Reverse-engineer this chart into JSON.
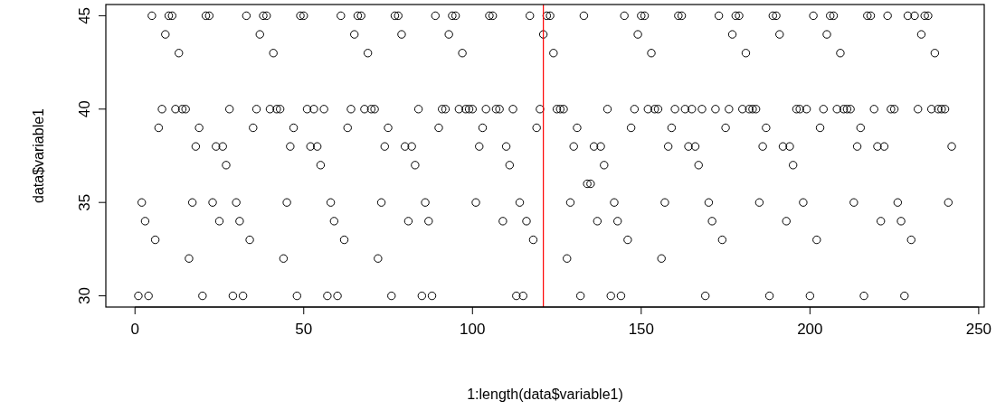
{
  "chart_data": {
    "type": "scatter",
    "xlabel": "1:length(data$variable1)",
    "ylabel": "data$variable1",
    "marker": "circle",
    "grid": false,
    "xlim": [
      -8.64,
      251.64
    ],
    "xticks": [
      0,
      50,
      100,
      150,
      200,
      250
    ],
    "ylim": [
      29.4,
      45.6
    ],
    "yticks": [
      30,
      35,
      40,
      45
    ],
    "ref_lines": [
      {
        "axis": "x",
        "value": 121,
        "color": "#ff0000"
      }
    ],
    "series": [
      {
        "color": "#000000",
        "x": [
          1,
          2,
          3,
          4,
          5,
          6,
          7,
          8,
          9,
          10,
          11,
          12,
          13,
          14,
          15,
          16,
          17,
          18,
          19,
          20,
          21,
          22,
          23,
          24,
          25,
          26,
          27,
          28,
          29,
          30,
          31,
          32,
          33,
          34,
          35,
          36,
          37,
          38,
          39,
          40,
          41,
          42,
          43,
          44,
          45,
          46,
          47,
          48,
          49,
          50,
          51,
          52,
          53,
          54,
          55,
          56,
          57,
          58,
          59,
          60,
          61,
          62,
          63,
          64,
          65,
          66,
          67,
          68,
          69,
          70,
          71,
          72,
          73,
          74,
          75,
          76,
          77,
          78,
          79,
          80,
          81,
          82,
          83,
          84,
          85,
          86,
          87,
          88,
          89,
          90,
          91,
          92,
          93,
          94,
          95,
          96,
          97,
          98,
          99,
          100,
          101,
          102,
          103,
          104,
          105,
          106,
          107,
          108,
          109,
          110,
          111,
          112,
          113,
          114,
          115,
          116,
          117,
          118,
          119,
          120,
          121,
          122,
          123,
          124,
          125,
          126,
          127,
          128,
          129,
          130,
          131,
          132,
          133,
          134,
          135,
          136,
          137,
          138,
          139,
          140,
          141,
          142,
          143,
          144,
          145,
          146,
          147,
          148,
          149,
          150,
          151,
          152,
          153,
          154,
          155,
          156,
          157,
          158,
          159,
          160,
          161,
          162,
          163,
          164,
          165,
          166,
          167,
          168,
          169,
          170,
          171,
          172,
          173,
          174,
          175,
          176,
          177,
          178,
          179,
          180,
          181,
          182,
          183,
          184,
          185,
          186,
          187,
          188,
          189,
          190,
          191,
          192,
          193,
          194,
          195,
          196,
          197,
          198,
          199,
          200,
          201,
          202,
          203,
          204,
          205,
          206,
          207,
          208,
          209,
          210,
          211,
          212,
          213,
          214,
          215,
          216,
          217,
          218,
          219,
          220,
          221,
          222,
          223,
          224,
          225,
          226,
          227,
          228,
          229,
          230,
          231,
          232,
          233,
          234,
          235,
          236,
          237,
          238,
          239,
          240,
          241,
          242
        ],
        "values": [
          30,
          35,
          34,
          30,
          45,
          33,
          39,
          40,
          44,
          45,
          45,
          40,
          43,
          40,
          40,
          32,
          35,
          38,
          39,
          30,
          45,
          45,
          35,
          38,
          34,
          38,
          37,
          40,
          30,
          35,
          34,
          30,
          45,
          33,
          39,
          40,
          44,
          45,
          45,
          40,
          43,
          40,
          40,
          32,
          35,
          38,
          39,
          30,
          45,
          45,
          40,
          38,
          40,
          38,
          37,
          40,
          30,
          35,
          34,
          30,
          45,
          33,
          39,
          40,
          44,
          45,
          45,
          40,
          43,
          40,
          40,
          32,
          35,
          38,
          39,
          30,
          45,
          45,
          44,
          38,
          34,
          38,
          37,
          40,
          30,
          35,
          34,
          30,
          45,
          39,
          40,
          40,
          44,
          45,
          45,
          40,
          43,
          40,
          40,
          40,
          35,
          38,
          39,
          40,
          45,
          45,
          40,
          40,
          34,
          38,
          37,
          40,
          30,
          35,
          30,
          34,
          45,
          33,
          39,
          40,
          44,
          45,
          45,
          43,
          40,
          40,
          40,
          32,
          35,
          38,
          39,
          30,
          45,
          36,
          36,
          38,
          34,
          38,
          37,
          40,
          30,
          35,
          34,
          30,
          45,
          33,
          39,
          40,
          44,
          45,
          45,
          40,
          43,
          40,
          40,
          32,
          35,
          38,
          39,
          40,
          45,
          45,
          40,
          38,
          40,
          38,
          37,
          40,
          30,
          35,
          34,
          40,
          45,
          33,
          39,
          40,
          44,
          45,
          45,
          40,
          43,
          40,
          40,
          40,
          35,
          38,
          39,
          30,
          45,
          45,
          44,
          38,
          34,
          38,
          37,
          40,
          40,
          35,
          40,
          30,
          45,
          33,
          39,
          40,
          44,
          45,
          45,
          40,
          43,
          40,
          40,
          40,
          35,
          38,
          39,
          30,
          45,
          45,
          40,
          38,
          34,
          38,
          45,
          40,
          40,
          35,
          34,
          30,
          45,
          33,
          45,
          40,
          44,
          45,
          45,
          40,
          43,
          40,
          40,
          40,
          35,
          38
        ]
      }
    ]
  }
}
